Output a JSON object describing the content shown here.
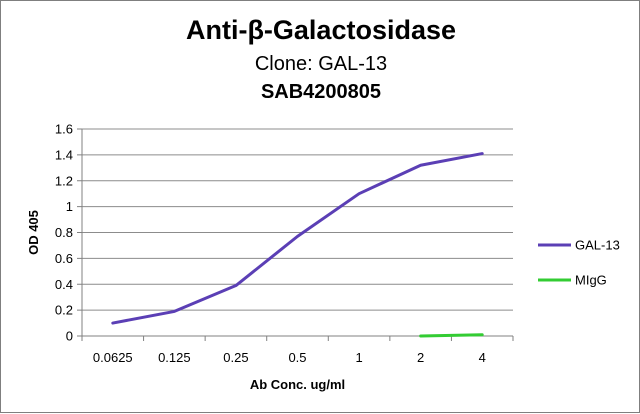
{
  "chart_data": {
    "type": "line",
    "title": "Anti-β-Galactosidase",
    "subtitle": "Clone: GAL-13",
    "subtitle2": "SAB4200805",
    "xlabel": "Ab Conc. ug/ml",
    "ylabel": "OD 405",
    "categories": [
      "0.0625",
      "0.125",
      "0.25",
      "0.5",
      "1",
      "2",
      "4"
    ],
    "ylim": [
      0,
      1.6
    ],
    "yticks": [
      "0",
      "0.2",
      "0.4",
      "0.6",
      "0.8",
      "1",
      "1.2",
      "1.4",
      "1.6"
    ],
    "grid": true,
    "legend_position": "right",
    "series": [
      {
        "name": "GAL-13",
        "color": "#5b3fb5",
        "values": [
          0.1,
          0.19,
          0.39,
          0.77,
          1.1,
          1.32,
          1.41
        ]
      },
      {
        "name": "MIgG",
        "color": "#33cc33",
        "values": [
          null,
          null,
          null,
          null,
          null,
          0.0,
          0.01
        ]
      }
    ]
  }
}
